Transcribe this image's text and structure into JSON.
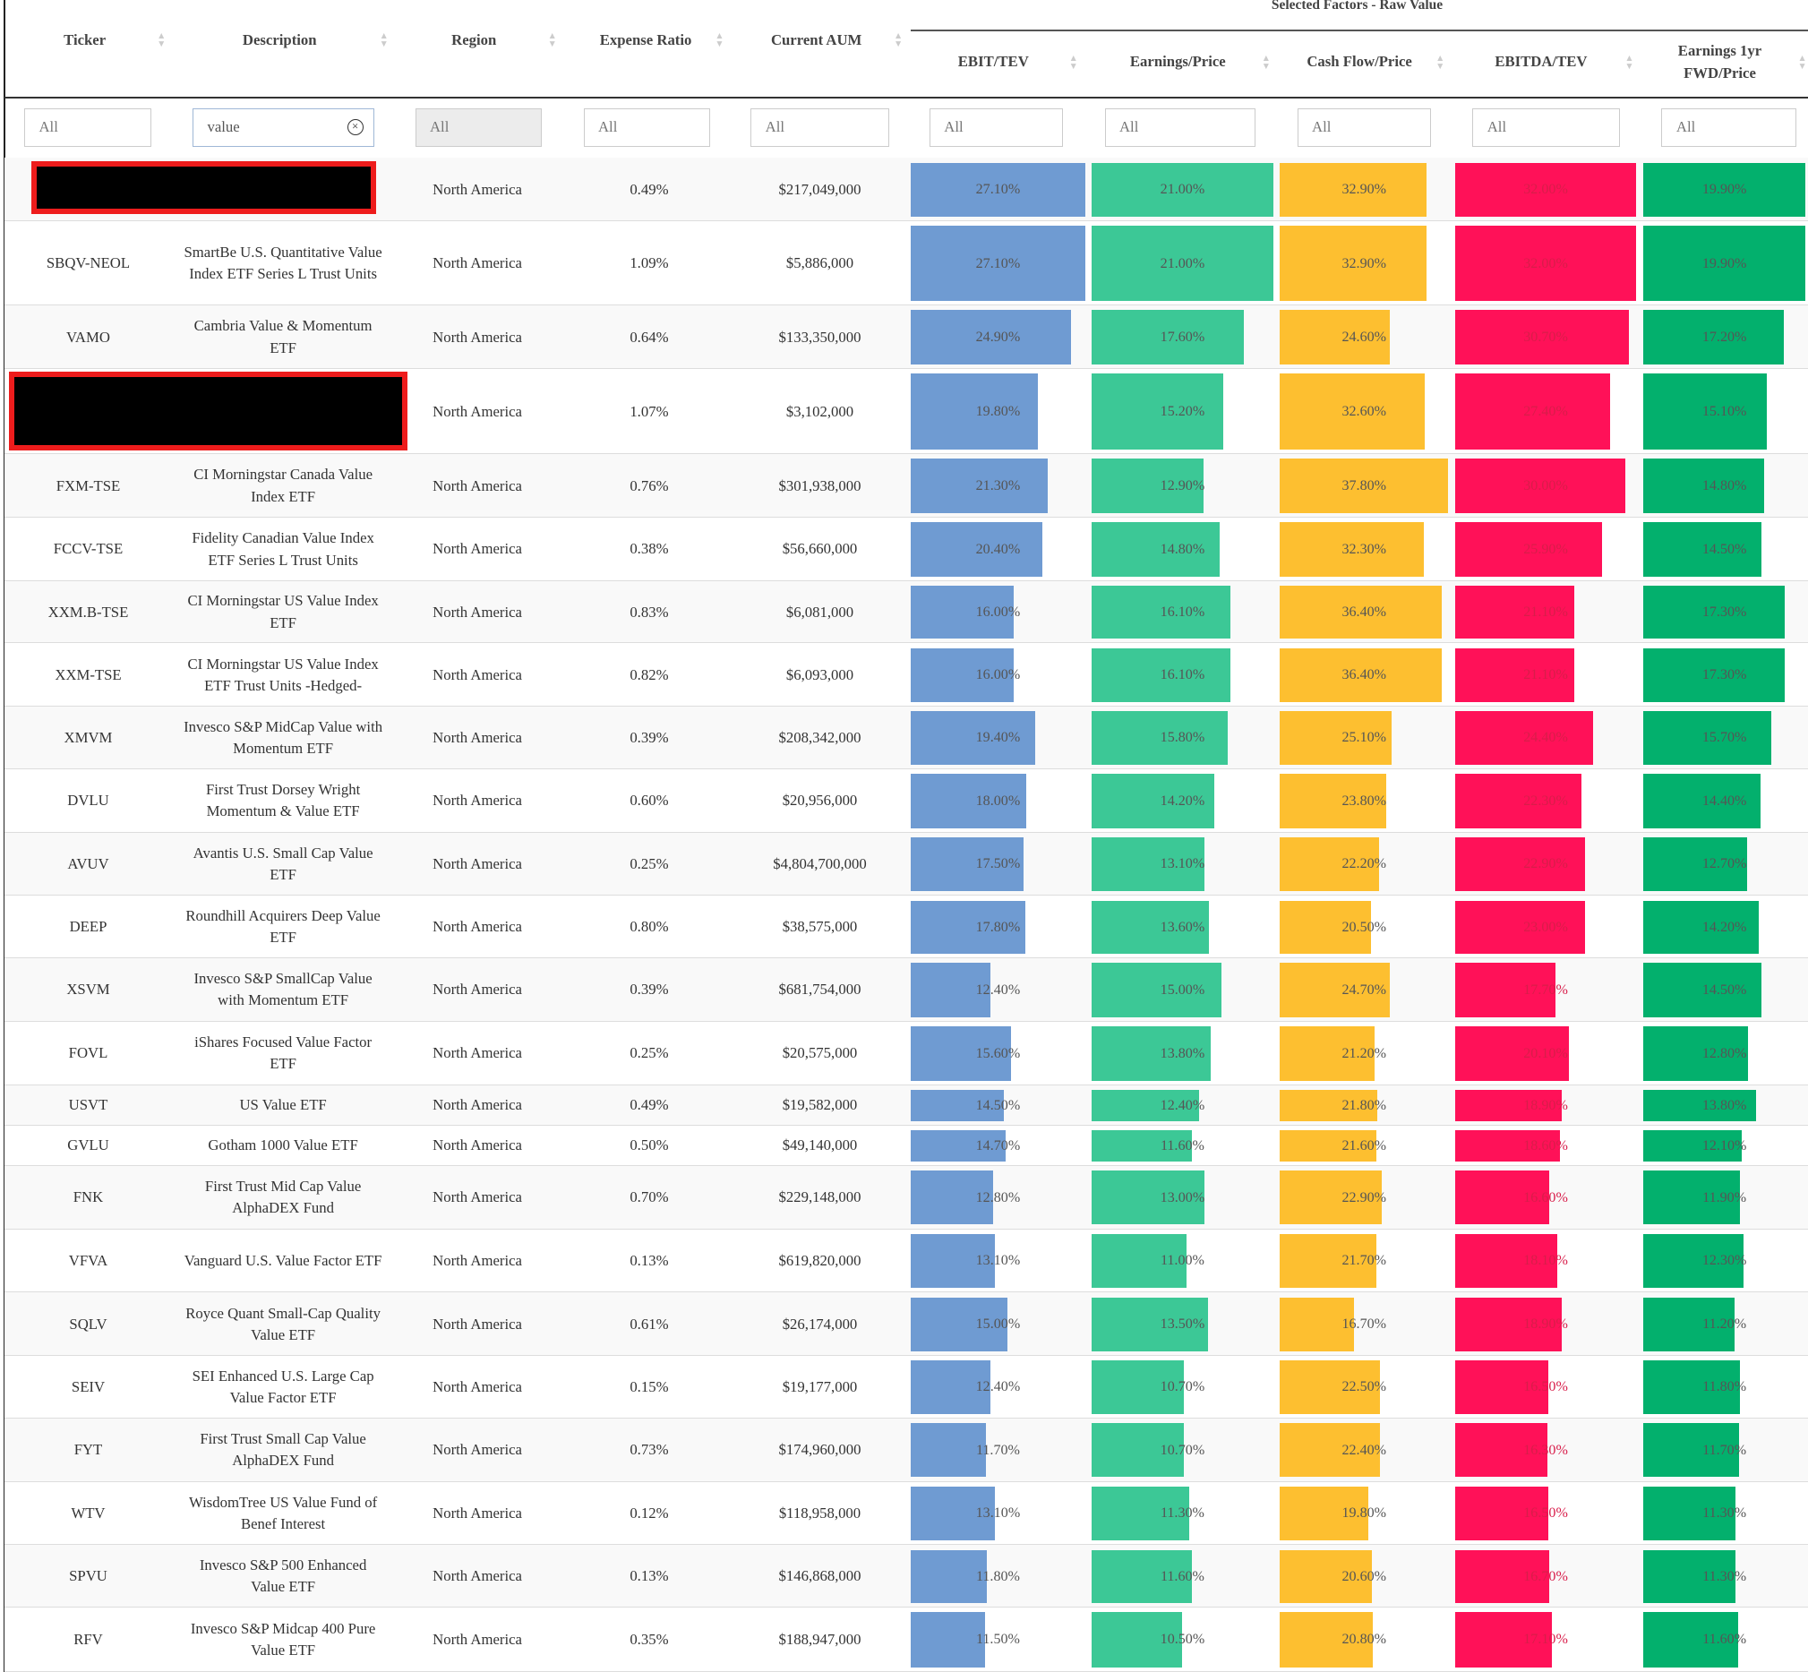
{
  "header": {
    "group_title": "Selected Factors - Raw Value",
    "columns": [
      "Ticker",
      "Description",
      "Region",
      "Expense Ratio",
      "Current AUM",
      "EBIT/TEV",
      "Earnings/Price",
      "Cash Flow/Price",
      "EBITDA/TEV",
      "Earnings 1yr FWD/Price"
    ]
  },
  "filters": [
    "All",
    "value",
    "All",
    "All",
    "All",
    "All",
    "All",
    "All",
    "All",
    "All"
  ],
  "bar_colors": [
    "#6f9bd2",
    "#3cc896",
    "#fdbf30",
    "#ff1158",
    "#03b06d"
  ],
  "table": {
    "rows": [
      [
        null,
        null,
        "North America",
        "0.49%",
        "$217,049,000",
        "27.10%",
        "21.00%",
        "32.90%",
        "32.00%",
        "19.90%"
      ],
      [
        "SBQV-NEOL",
        "SmartBe U.S. Quantitative Value Index ETF Series L Trust Units",
        "North America",
        "1.09%",
        "$5,886,000",
        "27.10%",
        "21.00%",
        "32.90%",
        "32.00%",
        "19.90%"
      ],
      [
        "VAMO",
        "Cambria Value & Momentum ETF",
        "North America",
        "0.64%",
        "$133,350,000",
        "24.90%",
        "17.60%",
        "24.60%",
        "30.70%",
        "17.20%"
      ],
      [
        null,
        null,
        "North America",
        "1.07%",
        "$3,102,000",
        "19.80%",
        "15.20%",
        "32.60%",
        "27.40%",
        "15.10%"
      ],
      [
        "FXM-TSE",
        "CI Morningstar Canada Value Index ETF",
        "North America",
        "0.76%",
        "$301,938,000",
        "21.30%",
        "12.90%",
        "37.80%",
        "30.00%",
        "14.80%"
      ],
      [
        "FCCV-TSE",
        "Fidelity Canadian Value Index ETF Series L Trust Units",
        "North America",
        "0.38%",
        "$56,660,000",
        "20.40%",
        "14.80%",
        "32.30%",
        "25.90%",
        "14.50%"
      ],
      [
        "XXM.B-TSE",
        "CI Morningstar US Value Index ETF",
        "North America",
        "0.83%",
        "$6,081,000",
        "16.00%",
        "16.10%",
        "36.40%",
        "21.10%",
        "17.30%"
      ],
      [
        "XXM-TSE",
        "CI Morningstar US Value Index ETF Trust Units -Hedged-",
        "North America",
        "0.82%",
        "$6,093,000",
        "16.00%",
        "16.10%",
        "36.40%",
        "21.10%",
        "17.30%"
      ],
      [
        "XMVM",
        "Invesco S&P MidCap Value with Momentum ETF",
        "North America",
        "0.39%",
        "$208,342,000",
        "19.40%",
        "15.80%",
        "25.10%",
        "24.40%",
        "15.70%"
      ],
      [
        "DVLU",
        "First Trust Dorsey Wright Momentum & Value ETF",
        "North America",
        "0.60%",
        "$20,956,000",
        "18.00%",
        "14.20%",
        "23.80%",
        "22.30%",
        "14.40%"
      ],
      [
        "AVUV",
        "Avantis U.S. Small Cap Value ETF",
        "North America",
        "0.25%",
        "$4,804,700,000",
        "17.50%",
        "13.10%",
        "22.20%",
        "22.90%",
        "12.70%"
      ],
      [
        "DEEP",
        "Roundhill Acquirers Deep Value ETF",
        "North America",
        "0.80%",
        "$38,575,000",
        "17.80%",
        "13.60%",
        "20.50%",
        "23.00%",
        "14.20%"
      ],
      [
        "XSVM",
        "Invesco S&P SmallCap Value with Momentum ETF",
        "North America",
        "0.39%",
        "$681,754,000",
        "12.40%",
        "15.00%",
        "24.70%",
        "17.70%",
        "14.50%"
      ],
      [
        "FOVL",
        "iShares Focused Value Factor ETF",
        "North America",
        "0.25%",
        "$20,575,000",
        "15.60%",
        "13.80%",
        "21.20%",
        "20.10%",
        "12.80%"
      ],
      [
        "USVT",
        "US Value ETF",
        "North America",
        "0.49%",
        "$19,582,000",
        "14.50%",
        "12.40%",
        "21.80%",
        "18.90%",
        "13.80%"
      ],
      [
        "GVLU",
        "Gotham 1000 Value ETF",
        "North America",
        "0.50%",
        "$49,140,000",
        "14.70%",
        "11.60%",
        "21.60%",
        "18.60%",
        "12.10%"
      ],
      [
        "FNK",
        "First Trust Mid Cap Value AlphaDEX Fund",
        "North America",
        "0.70%",
        "$229,148,000",
        "12.80%",
        "13.00%",
        "22.90%",
        "16.60%",
        "11.90%"
      ],
      [
        "VFVA",
        "Vanguard U.S. Value Factor ETF",
        "North America",
        "0.13%",
        "$619,820,000",
        "13.10%",
        "11.00%",
        "21.70%",
        "18.10%",
        "12.30%"
      ],
      [
        "SQLV",
        "Royce Quant Small-Cap Quality Value ETF",
        "North America",
        "0.61%",
        "$26,174,000",
        "15.00%",
        "13.50%",
        "16.70%",
        "18.90%",
        "11.20%"
      ],
      [
        "SEIV",
        "SEI Enhanced U.S. Large Cap Value Factor ETF",
        "North America",
        "0.15%",
        "$19,177,000",
        "12.40%",
        "10.70%",
        "22.50%",
        "16.50%",
        "11.80%"
      ],
      [
        "FYT",
        "First Trust Small Cap Value AlphaDEX Fund",
        "North America",
        "0.73%",
        "$174,960,000",
        "11.70%",
        "10.70%",
        "22.40%",
        "16.30%",
        "11.70%"
      ],
      [
        "WTV",
        "WisdomTree US Value Fund of Benef Interest",
        "North America",
        "0.12%",
        "$118,958,000",
        "13.10%",
        "11.30%",
        "19.80%",
        "16.50%",
        "11.30%"
      ],
      [
        "SPVU",
        "Invesco S&P 500 Enhanced Value ETF",
        "North America",
        "0.13%",
        "$146,868,000",
        "11.80%",
        "11.60%",
        "20.60%",
        "16.70%",
        "11.30%"
      ],
      [
        "RFV",
        "Invesco S&P Midcap 400 Pure Value ETF",
        "North America",
        "0.35%",
        "$188,947,000",
        "11.50%",
        "10.50%",
        "20.80%",
        "17.10%",
        "11.60%"
      ]
    ]
  }
}
